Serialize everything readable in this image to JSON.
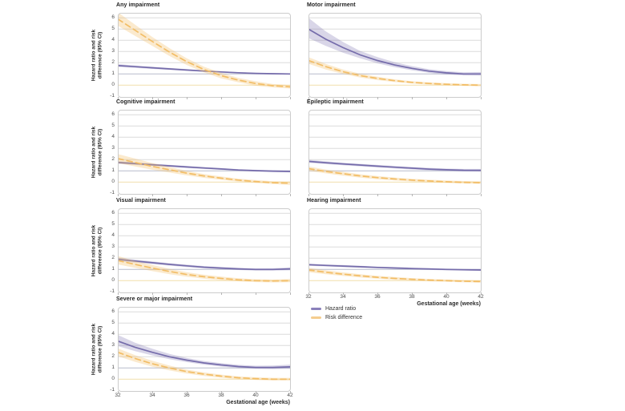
{
  "figure": {
    "axis": {
      "y_label": "Hazard ratio and risk difference (95% CI)",
      "x_label": "Gestational age (weeks)",
      "y_ticks": [
        6,
        5,
        4,
        3,
        2,
        1,
        0,
        -1
      ],
      "x_ticks": [
        32,
        34,
        36,
        38,
        40,
        42
      ]
    },
    "legend": {
      "items": [
        {
          "label": "Hazard ratio",
          "color": "#8a80bb"
        },
        {
          "label": "Risk difference",
          "color": "#f5cd8f"
        }
      ]
    },
    "colors": {
      "hazard_line": "#756cab",
      "hazard_band": "rgba(117,108,171,0.28)",
      "risk_line": "#f2bd66",
      "risk_band": "rgba(242,189,102,0.32)",
      "grid": "#dcdcdc",
      "ref_hazard_1": "#b7bbcc",
      "ref_risk_0": "#f3e2b6",
      "panel_border": "#cccccc"
    }
  },
  "chart_data": [
    {
      "type": "line",
      "title": "Any impairment",
      "x": [
        32,
        33,
        34,
        35,
        36,
        37,
        38,
        39,
        40,
        41,
        42
      ],
      "ylim": [
        -1,
        6
      ],
      "xlim": [
        32,
        42
      ],
      "ylabel": "Hazard ratio and risk difference (95% CI)",
      "xlabel": "Gestational age (weeks)",
      "series": [
        {
          "name": "Hazard ratio",
          "values": [
            1.75,
            1.65,
            1.55,
            1.45,
            1.35,
            1.26,
            1.18,
            1.11,
            1.05,
            1.02,
            1.0
          ],
          "lo": [
            1.62,
            1.54,
            1.45,
            1.36,
            1.27,
            1.19,
            1.12,
            1.06,
            1.0,
            0.97,
            0.95
          ],
          "hi": [
            1.88,
            1.76,
            1.65,
            1.54,
            1.43,
            1.33,
            1.24,
            1.16,
            1.1,
            1.07,
            1.05
          ]
        },
        {
          "name": "Risk difference",
          "values": [
            5.9,
            4.9,
            3.9,
            2.95,
            2.1,
            1.4,
            0.85,
            0.45,
            0.15,
            -0.05,
            -0.15
          ],
          "lo": [
            5.3,
            4.4,
            3.5,
            2.6,
            1.8,
            1.15,
            0.6,
            0.25,
            -0.05,
            -0.2,
            -0.3
          ],
          "hi": [
            6.5,
            5.4,
            4.3,
            3.3,
            2.4,
            1.65,
            1.1,
            0.65,
            0.35,
            0.1,
            0.0
          ]
        }
      ]
    },
    {
      "type": "line",
      "title": "Motor impairment",
      "x": [
        32,
        33,
        34,
        35,
        36,
        37,
        38,
        39,
        40,
        41,
        42
      ],
      "ylim": [
        -1,
        6
      ],
      "xlim": [
        32,
        42
      ],
      "series": [
        {
          "name": "Hazard ratio",
          "values": [
            5.0,
            4.1,
            3.35,
            2.7,
            2.2,
            1.8,
            1.5,
            1.25,
            1.1,
            1.0,
            1.0
          ],
          "lo": [
            4.2,
            3.5,
            2.9,
            2.4,
            1.95,
            1.6,
            1.33,
            1.1,
            0.95,
            0.87,
            0.85
          ],
          "hi": [
            6.0,
            4.8,
            3.85,
            3.05,
            2.5,
            2.05,
            1.7,
            1.42,
            1.25,
            1.15,
            1.17
          ]
        },
        {
          "name": "Risk difference",
          "values": [
            2.2,
            1.65,
            1.2,
            0.85,
            0.6,
            0.4,
            0.25,
            0.15,
            0.08,
            0.03,
            0.0
          ],
          "lo": [
            1.9,
            1.4,
            1.0,
            0.68,
            0.45,
            0.28,
            0.15,
            0.05,
            -0.02,
            -0.07,
            -0.1
          ],
          "hi": [
            2.5,
            1.9,
            1.4,
            1.02,
            0.75,
            0.52,
            0.35,
            0.25,
            0.18,
            0.13,
            0.1
          ]
        }
      ]
    },
    {
      "type": "line",
      "title": "Cognitive impairment",
      "x": [
        32,
        33,
        34,
        35,
        36,
        37,
        38,
        39,
        40,
        41,
        42
      ],
      "ylim": [
        -1,
        6
      ],
      "xlim": [
        32,
        42
      ],
      "series": [
        {
          "name": "Hazard ratio",
          "values": [
            1.75,
            1.65,
            1.55,
            1.45,
            1.35,
            1.26,
            1.17,
            1.08,
            1.02,
            0.98,
            0.95
          ],
          "lo": [
            1.63,
            1.54,
            1.45,
            1.36,
            1.26,
            1.17,
            1.09,
            1.0,
            0.94,
            0.9,
            0.87
          ],
          "hi": [
            1.87,
            1.76,
            1.65,
            1.54,
            1.44,
            1.35,
            1.25,
            1.16,
            1.1,
            1.06,
            1.03
          ]
        },
        {
          "name": "Risk difference",
          "values": [
            2.1,
            1.75,
            1.4,
            1.1,
            0.8,
            0.55,
            0.35,
            0.18,
            0.05,
            -0.05,
            -0.1
          ],
          "lo": [
            1.7,
            1.4,
            1.1,
            0.85,
            0.6,
            0.38,
            0.2,
            0.05,
            -0.08,
            -0.18,
            -0.25
          ],
          "hi": [
            2.5,
            2.1,
            1.7,
            1.35,
            1.0,
            0.72,
            0.5,
            0.31,
            0.18,
            0.08,
            0.05
          ]
        }
      ]
    },
    {
      "type": "line",
      "title": "Epileptic impairment",
      "x": [
        32,
        33,
        34,
        35,
        36,
        37,
        38,
        39,
        40,
        41,
        42
      ],
      "ylim": [
        -1,
        6
      ],
      "xlim": [
        32,
        42
      ],
      "series": [
        {
          "name": "Hazard ratio",
          "values": [
            1.85,
            1.73,
            1.62,
            1.52,
            1.42,
            1.33,
            1.24,
            1.16,
            1.1,
            1.06,
            1.05
          ],
          "lo": [
            1.72,
            1.61,
            1.51,
            1.41,
            1.31,
            1.22,
            1.13,
            1.05,
            0.99,
            0.95,
            0.93
          ],
          "hi": [
            1.98,
            1.85,
            1.73,
            1.63,
            1.53,
            1.44,
            1.35,
            1.27,
            1.21,
            1.17,
            1.17
          ]
        },
        {
          "name": "Risk difference",
          "values": [
            1.2,
            0.95,
            0.75,
            0.55,
            0.4,
            0.28,
            0.18,
            0.1,
            0.03,
            -0.02,
            -0.05
          ],
          "lo": [
            1.0,
            0.78,
            0.58,
            0.4,
            0.26,
            0.15,
            0.06,
            -0.02,
            -0.08,
            -0.13,
            -0.16
          ],
          "hi": [
            1.4,
            1.12,
            0.92,
            0.7,
            0.54,
            0.41,
            0.3,
            0.22,
            0.14,
            0.09,
            0.06
          ]
        }
      ]
    },
    {
      "type": "line",
      "title": "Visual impairment",
      "x": [
        32,
        33,
        34,
        35,
        36,
        37,
        38,
        39,
        40,
        41,
        42
      ],
      "ylim": [
        -1,
        6
      ],
      "xlim": [
        32,
        42
      ],
      "series": [
        {
          "name": "Hazard ratio",
          "values": [
            1.9,
            1.75,
            1.6,
            1.45,
            1.32,
            1.2,
            1.12,
            1.05,
            1.0,
            1.0,
            1.05
          ],
          "lo": [
            1.75,
            1.62,
            1.48,
            1.34,
            1.21,
            1.1,
            1.02,
            0.95,
            0.9,
            0.89,
            0.92
          ],
          "hi": [
            2.05,
            1.88,
            1.72,
            1.56,
            1.43,
            1.3,
            1.22,
            1.15,
            1.1,
            1.11,
            1.18
          ]
        },
        {
          "name": "Risk difference",
          "values": [
            1.8,
            1.45,
            1.12,
            0.82,
            0.55,
            0.35,
            0.2,
            0.08,
            0.0,
            -0.03,
            0.0
          ],
          "lo": [
            1.45,
            1.15,
            0.85,
            0.58,
            0.35,
            0.17,
            0.04,
            -0.06,
            -0.13,
            -0.16,
            -0.14
          ],
          "hi": [
            2.2,
            1.75,
            1.4,
            1.06,
            0.75,
            0.53,
            0.36,
            0.22,
            0.13,
            0.1,
            0.14
          ]
        }
      ]
    },
    {
      "type": "line",
      "title": "Hearing impairment",
      "x": [
        32,
        33,
        34,
        35,
        36,
        37,
        38,
        39,
        40,
        41,
        42
      ],
      "ylim": [
        -1,
        6
      ],
      "xlim": [
        32,
        42
      ],
      "xlabel": "Gestational age (weeks)",
      "series": [
        {
          "name": "Hazard ratio",
          "values": [
            1.42,
            1.36,
            1.3,
            1.24,
            1.18,
            1.13,
            1.08,
            1.04,
            1.0,
            0.97,
            0.95
          ],
          "lo": [
            1.32,
            1.27,
            1.21,
            1.15,
            1.1,
            1.05,
            1.0,
            0.96,
            0.92,
            0.89,
            0.86
          ],
          "hi": [
            1.52,
            1.45,
            1.39,
            1.33,
            1.26,
            1.21,
            1.16,
            1.12,
            1.08,
            1.05,
            1.04
          ]
        },
        {
          "name": "Risk difference",
          "values": [
            0.95,
            0.75,
            0.58,
            0.43,
            0.3,
            0.2,
            0.12,
            0.05,
            0.0,
            -0.05,
            -0.08
          ],
          "lo": [
            0.75,
            0.57,
            0.42,
            0.28,
            0.17,
            0.08,
            0.01,
            -0.06,
            -0.11,
            -0.15,
            -0.18
          ],
          "hi": [
            1.15,
            0.93,
            0.74,
            0.58,
            0.43,
            0.32,
            0.23,
            0.16,
            0.11,
            0.05,
            0.02
          ]
        }
      ]
    },
    {
      "type": "line",
      "title": "Severe or major impairment",
      "x": [
        32,
        33,
        34,
        35,
        36,
        37,
        38,
        39,
        40,
        41,
        42
      ],
      "ylim": [
        -1,
        6
      ],
      "xlim": [
        32,
        42
      ],
      "xlabel": "Gestational age (weeks)",
      "series": [
        {
          "name": "Hazard ratio",
          "values": [
            3.4,
            2.85,
            2.4,
            2.0,
            1.7,
            1.45,
            1.27,
            1.13,
            1.05,
            1.05,
            1.1
          ],
          "lo": [
            2.95,
            2.5,
            2.12,
            1.78,
            1.52,
            1.3,
            1.13,
            1.0,
            0.92,
            0.9,
            0.93
          ],
          "hi": [
            3.95,
            3.25,
            2.72,
            2.25,
            1.9,
            1.62,
            1.43,
            1.28,
            1.2,
            1.22,
            1.3
          ]
        },
        {
          "name": "Risk difference",
          "values": [
            2.4,
            1.85,
            1.38,
            1.0,
            0.68,
            0.45,
            0.27,
            0.13,
            0.05,
            0.0,
            0.0
          ],
          "lo": [
            2.05,
            1.55,
            1.12,
            0.78,
            0.5,
            0.29,
            0.13,
            0.01,
            -0.07,
            -0.12,
            -0.12
          ],
          "hi": [
            2.75,
            2.15,
            1.64,
            1.22,
            0.86,
            0.61,
            0.41,
            0.25,
            0.17,
            0.12,
            0.12
          ]
        }
      ]
    }
  ]
}
